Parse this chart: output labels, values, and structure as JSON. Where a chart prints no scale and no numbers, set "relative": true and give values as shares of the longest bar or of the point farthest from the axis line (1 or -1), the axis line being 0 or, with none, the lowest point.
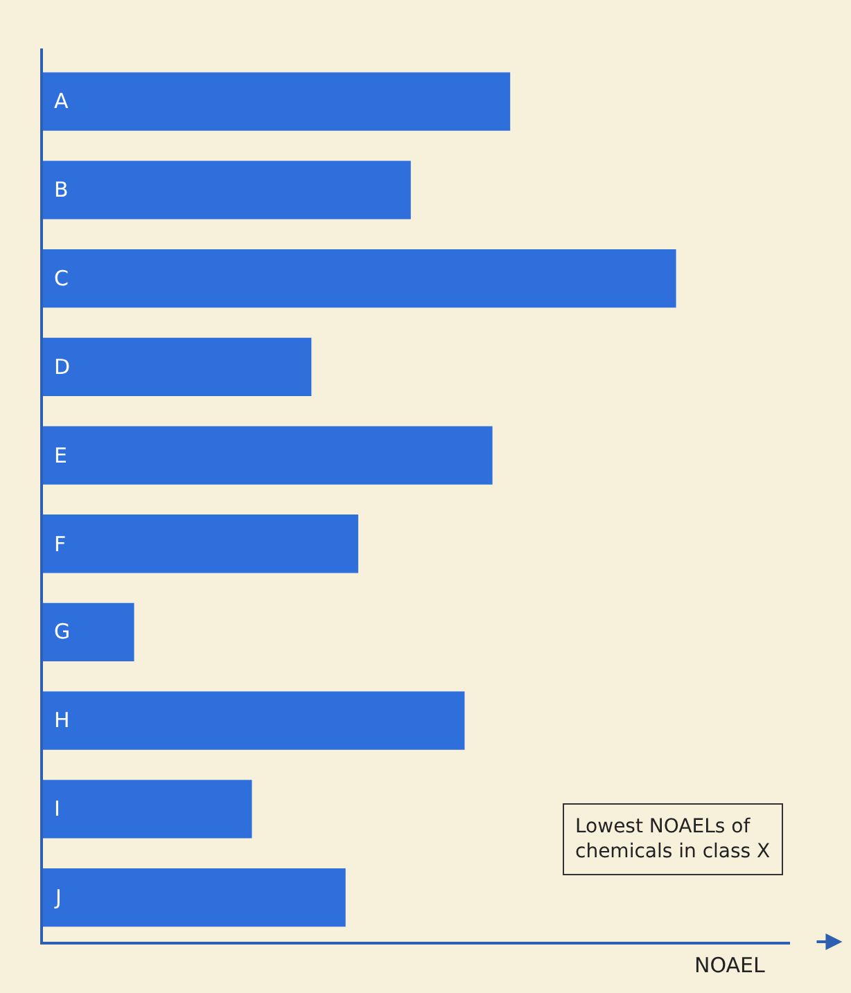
{
  "chart_data": {
    "type": "bar",
    "orientation": "horizontal",
    "relative": true,
    "categories": [
      "A",
      "B",
      "C",
      "D",
      "E",
      "F",
      "G",
      "H",
      "I",
      "J"
    ],
    "values": [
      0.738,
      0.581,
      1,
      0.424,
      0.71,
      0.498,
      0.144,
      0.666,
      0.33,
      0.478
    ],
    "color": "#2f6fdc",
    "xlabel": "NOAEL",
    "annotations": [
      "Lowest NOAELs of\nchemicals in class X"
    ],
    "grid": false,
    "legend": false
  }
}
